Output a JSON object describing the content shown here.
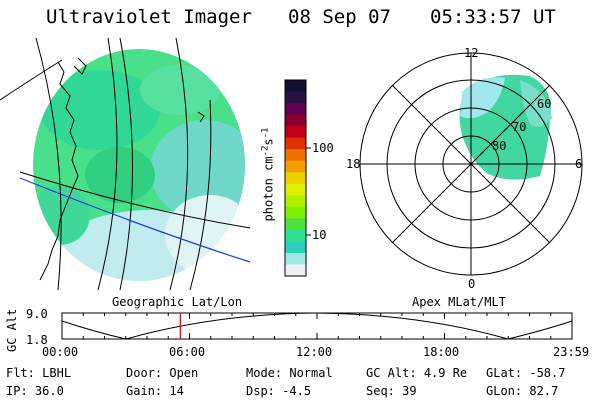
{
  "header": {
    "instrument": "Ultraviolet Imager",
    "date": "08 Sep 07",
    "time": "05:33:57 UT"
  },
  "colorbar": {
    "label": "photon cm",
    "label_sup1": "-2",
    "label_mid": "s",
    "label_sup2": "-1",
    "ticks": [
      "100",
      "10"
    ],
    "colors": [
      "#101030",
      "#2a1040",
      "#600050",
      "#8a0030",
      "#c00018",
      "#e03000",
      "#f07000",
      "#f0a000",
      "#f0d000",
      "#e0f000",
      "#b0f000",
      "#80f000",
      "#50e040",
      "#30e090",
      "#30d0c0",
      "#a0e8e8",
      "#f0f0f0"
    ]
  },
  "panels": {
    "left_label": "Geographic Lat/Lon",
    "right_label": "Apex MLat/MLT"
  },
  "polar": {
    "mlt_labels": {
      "top": "12",
      "left": "18",
      "right": "6",
      "bottom": "0"
    },
    "lat_labels": [
      "60",
      "70",
      "80"
    ]
  },
  "altitude_plot": {
    "ylabel": "GC Alt",
    "ymax": "9.0",
    "ymin": "1.8",
    "x_ticks": [
      "00:00",
      "06:00",
      "12:00",
      "18:00",
      "23:59"
    ],
    "current_time_fraction": 0.232
  },
  "status": {
    "flt_label": "Flt:",
    "flt_value": "LBHL",
    "door_label": "Door:",
    "door_value": "Open",
    "mode_label": "Mode:",
    "mode_value": "Normal",
    "gcalt_label": "GC Alt:",
    "gcalt_value": "4.9 Re",
    "glat_label": "GLat:",
    "glat_value": "-58.7",
    "ip_label": "IP:",
    "ip_value": "36.0",
    "gain_label": "Gain:",
    "gain_value": "14",
    "dsp_label": "Dsp:",
    "dsp_value": "-4.5",
    "seq_label": "Seq:",
    "seq_value": "39",
    "glon_label": "GLon:",
    "glon_value": "82.7"
  }
}
